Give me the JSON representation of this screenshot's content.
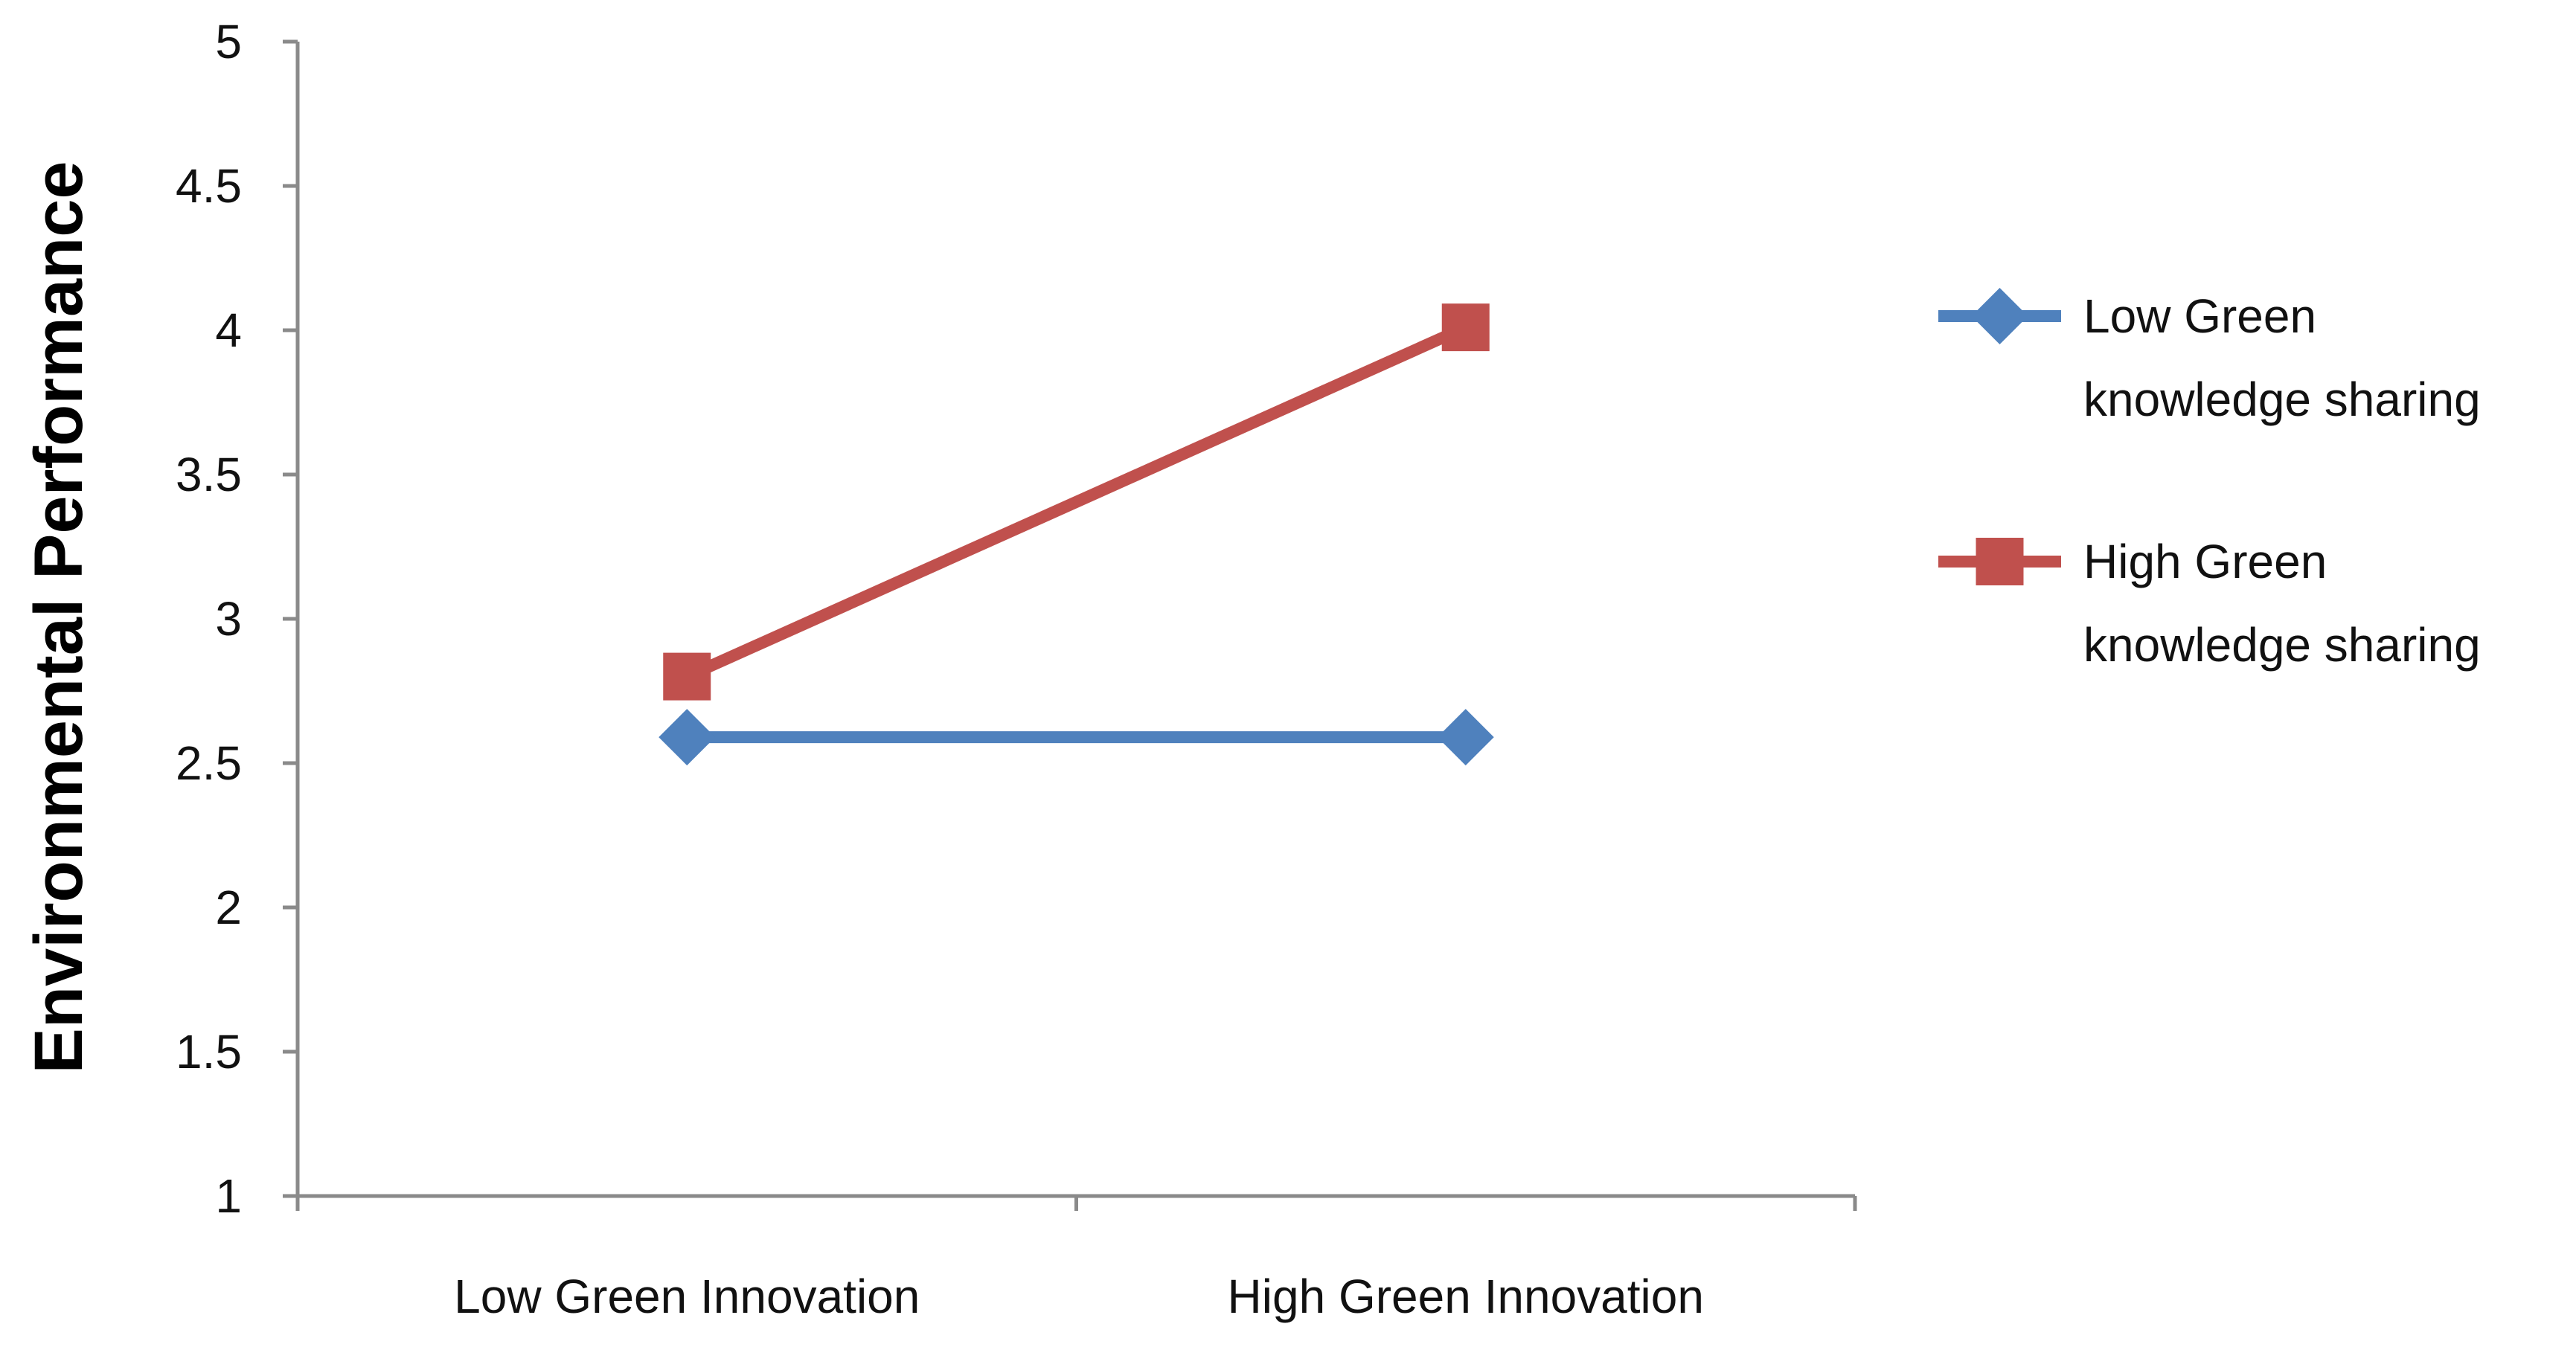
{
  "chart_data": {
    "type": "line",
    "title": "",
    "xlabel": "",
    "ylabel": "Environmental Performance",
    "categories": [
      "Low Green Innovation",
      "High Green Innovation"
    ],
    "ylim": [
      1,
      5
    ],
    "yticks": [
      "1",
      "1.5",
      "2",
      "2.5",
      "3",
      "3.5",
      "4",
      "4.5",
      "5"
    ],
    "grid": false,
    "legend_position": "right",
    "series": [
      {
        "name_lines": [
          "Low Green",
          "knowledge sharing"
        ],
        "values": [
          2.59,
          2.59
        ],
        "color": "#4F81BD",
        "marker": "diamond"
      },
      {
        "name_lines": [
          "High Green",
          "knowledge sharing"
        ],
        "values": [
          2.8,
          4.01
        ],
        "color": "#C0504D",
        "marker": "square"
      }
    ]
  }
}
